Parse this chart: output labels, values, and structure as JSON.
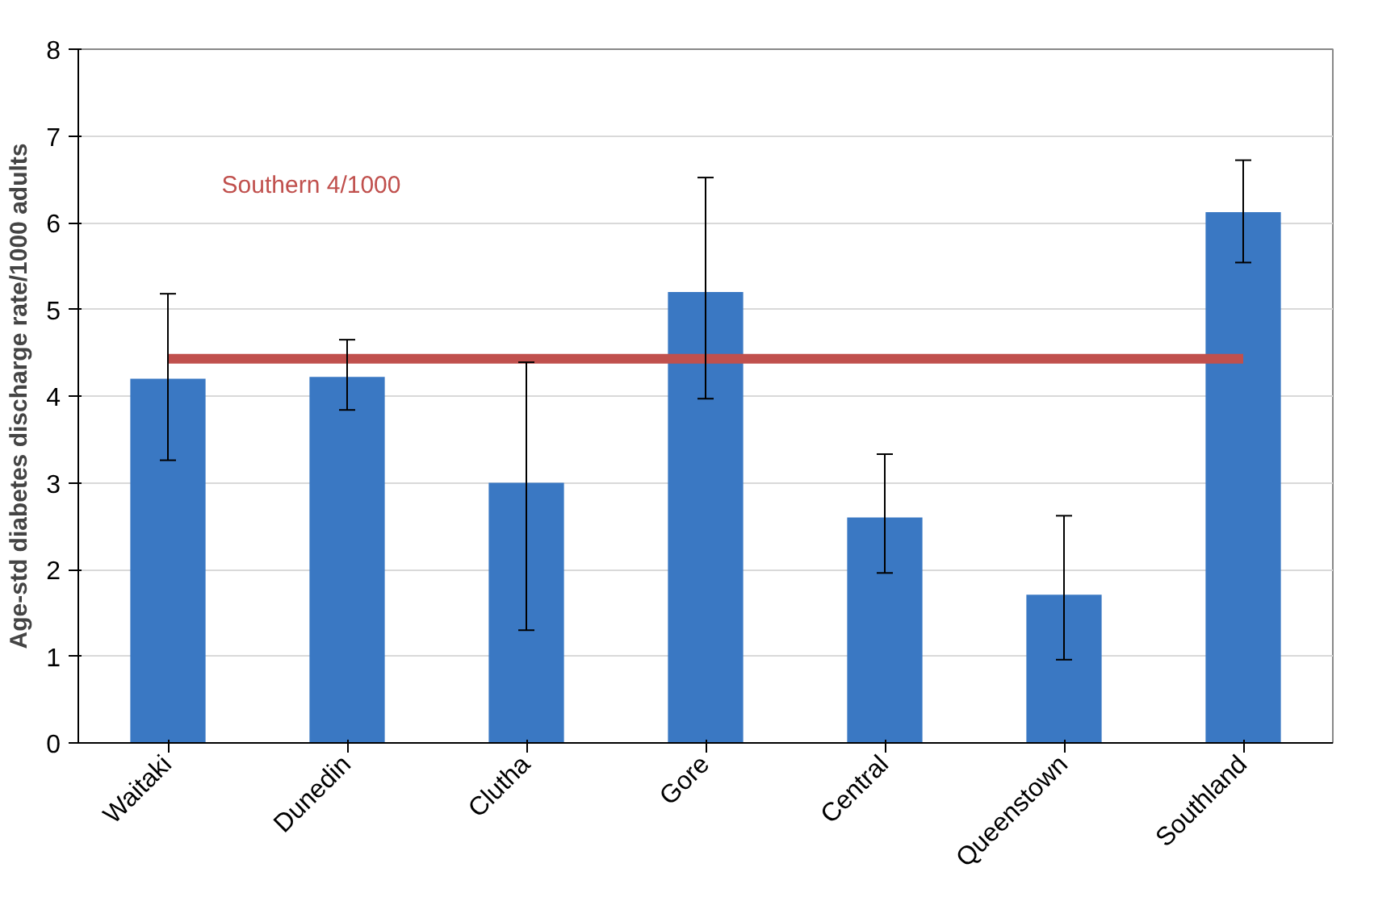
{
  "chart_data": {
    "type": "bar",
    "ylabel": "Age-std diabetes discharge rate/1000 adults",
    "categories": [
      "Waitaki",
      "Dunedin",
      "Clutha",
      "Gore",
      "Central",
      "Queenstown",
      "Southland"
    ],
    "values": [
      4.2,
      4.22,
      3.0,
      5.2,
      2.6,
      1.71,
      6.12
    ],
    "errors": [
      [
        3.26,
        5.18
      ],
      [
        3.84,
        4.65
      ],
      [
        1.3,
        4.39
      ],
      [
        3.97,
        6.52
      ],
      [
        1.96,
        3.33
      ],
      [
        0.96,
        2.62
      ],
      [
        5.54,
        6.72
      ]
    ],
    "color": "#3a78c3",
    "ylim": [
      0,
      8
    ],
    "yticks": [
      0,
      1,
      2,
      3,
      4,
      5,
      6,
      7,
      8
    ],
    "grid": "y",
    "ref_lines": [
      {
        "axis": "y",
        "value": 4.43,
        "label": "Southern 4/1000",
        "color": "#c0504d"
      }
    ]
  }
}
